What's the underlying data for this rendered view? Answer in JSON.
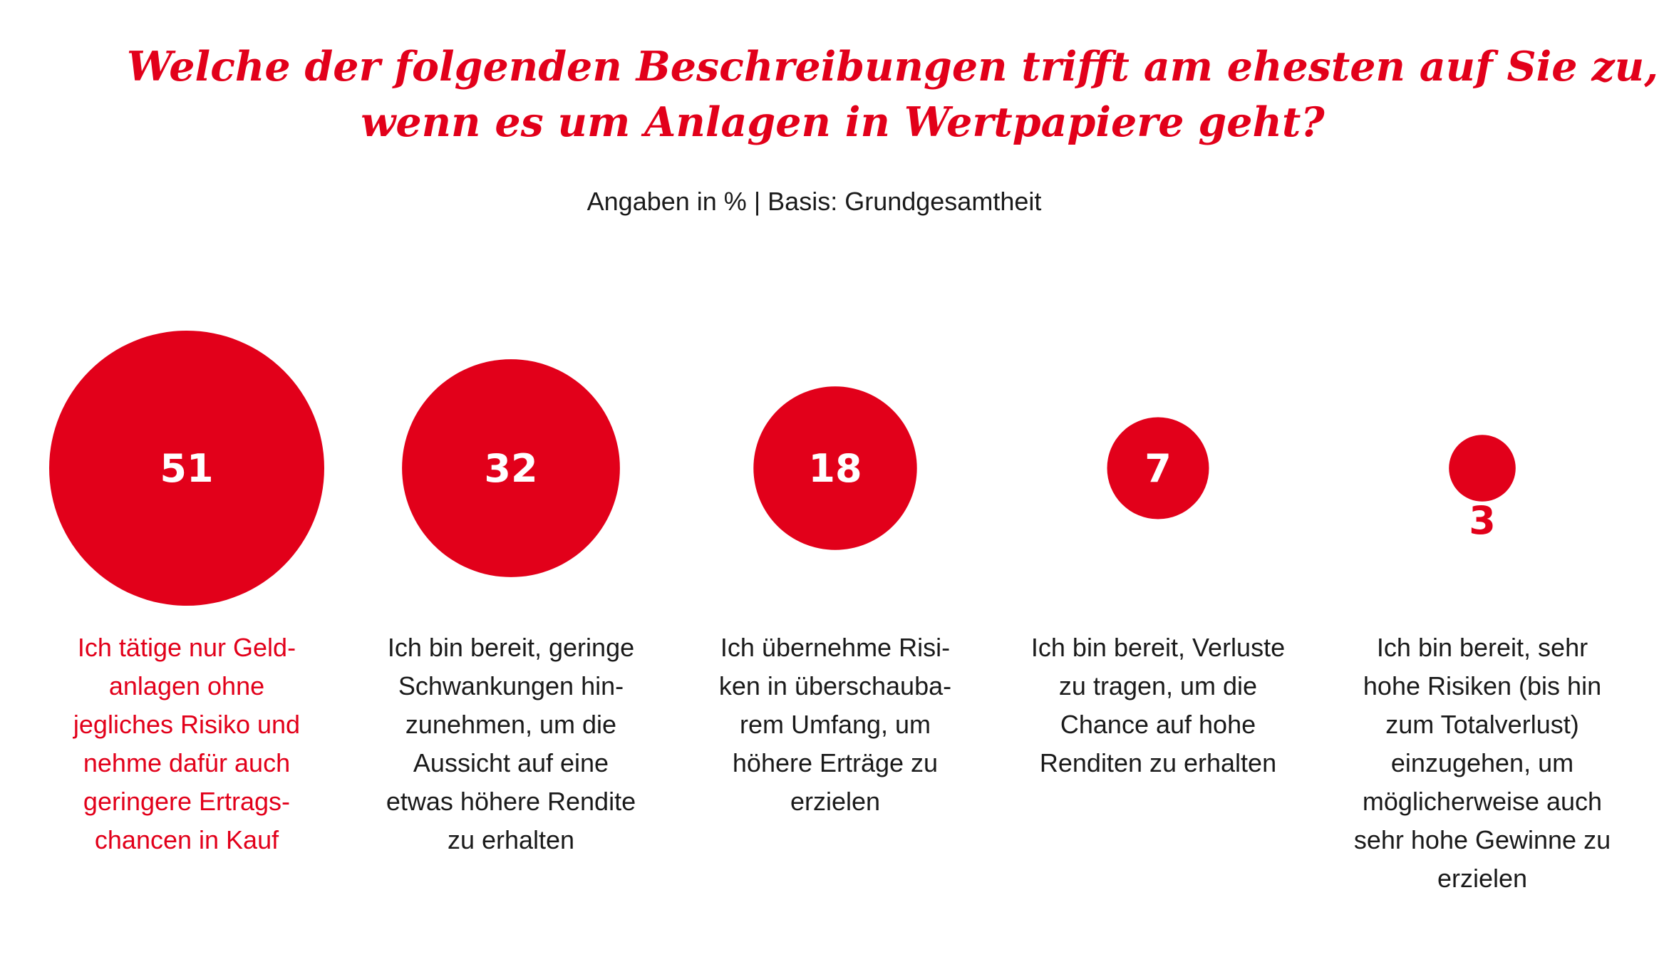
{
  "chart_data": {
    "type": "bubble",
    "title_lines": [
      "Welche der folgenden Beschreibungen trifft am ehesten auf Sie zu,",
      "wenn es um Anlagen in Wertpapiere geht?"
    ],
    "subtitle": "Angaben in % | Basis: Grundgesamtheit",
    "unit": "%",
    "items": [
      {
        "value": 51,
        "label": "51",
        "description": [
          "Ich tätige nur Geld-",
          "anlagen ohne",
          "jegliches Risiko und",
          "nehme dafür auch",
          "geringere Ertrags-",
          "chancen in Kauf"
        ],
        "highlight": true
      },
      {
        "value": 32,
        "label": "32",
        "description": [
          "Ich bin bereit, geringe",
          "Schwankungen hin-",
          "zunehmen, um die",
          "Aussicht auf eine",
          "etwas höhere Rendite",
          "zu erhalten"
        ],
        "highlight": false
      },
      {
        "value": 18,
        "label": "18",
        "description": [
          "Ich übernehme Risi-",
          "ken in überschauba-",
          "rem Umfang, um",
          "höhere Erträge zu",
          "erzielen"
        ],
        "highlight": false
      },
      {
        "value": 7,
        "label": "7",
        "description": [
          "Ich bin bereit, Verluste",
          "zu tragen, um die",
          "Chance auf hohe",
          "Renditen zu erhalten"
        ],
        "highlight": false
      },
      {
        "value": 3,
        "label": "3",
        "description": [
          "Ich bin bereit, sehr",
          "hohe Risiken (bis hin",
          "zum Totalverlust)",
          "einzugehen, um",
          "möglicherweise auch",
          "sehr hohe Gewinne zu",
          "erzielen"
        ],
        "highlight": false
      }
    ]
  },
  "colors": {
    "accent": "#e2001a",
    "text": "#1a1a1a",
    "inside_label": "#ffffff",
    "background": "#ffffff"
  }
}
